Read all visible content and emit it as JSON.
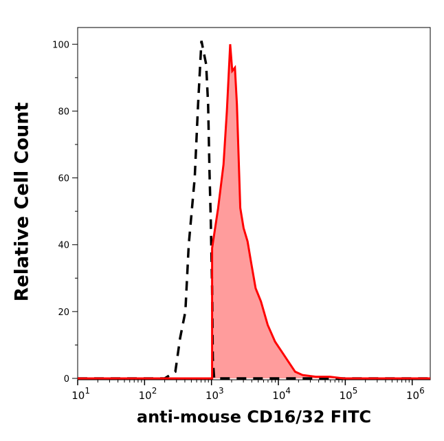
{
  "chart_data": {
    "type": "area",
    "xlabel": "anti-mouse CD16/32 FITC",
    "ylabel": "Relative Cell Count",
    "x_scale": "log",
    "xlim": [
      10,
      1862087
    ],
    "ylim": [
      0,
      105
    ],
    "x_ticks": [
      {
        "base": "10",
        "exp": "1",
        "v": 10
      },
      {
        "base": "10",
        "exp": "2",
        "v": 100
      },
      {
        "base": "10",
        "exp": "3",
        "v": 1000
      },
      {
        "base": "10",
        "exp": "4",
        "v": 10000
      },
      {
        "base": "10",
        "exp": "5",
        "v": 100000
      },
      {
        "base": "10",
        "exp": "6",
        "v": 1000000
      }
    ],
    "y_ticks": [
      "0",
      "20",
      "40",
      "60",
      "80",
      "100"
    ],
    "grid": false,
    "series": [
      {
        "style": "dashed",
        "color": "#000000",
        "fill": "none",
        "x": [
          10,
          200,
          288,
          339,
          407,
          457,
          562,
          631,
          708,
          832,
          891,
          933,
          977,
          1023,
          1047,
          1096,
          1862087
        ],
        "y": [
          0,
          0,
          2,
          12,
          20,
          40,
          60,
          82,
          101,
          94,
          82,
          62,
          47,
          27,
          6,
          0,
          0
        ]
      },
      {
        "style": "solid",
        "color": "#ff0000",
        "fill": "#ff9c9c",
        "x": [
          10,
          1023,
          1023,
          1259,
          1514,
          1698,
          1820,
          1905,
          2042,
          2239,
          2399,
          2692,
          3020,
          3467,
          3890,
          4571,
          5495,
          6918,
          8913,
          11220,
          14125,
          17783,
          22909,
          36308,
          58884,
          93325,
          1862087
        ],
        "y": [
          0,
          0,
          39,
          51,
          64,
          80,
          92,
          100,
          92,
          93,
          82,
          51,
          45,
          41,
          35,
          27,
          23,
          16,
          11,
          8,
          5,
          2,
          1,
          0.5,
          0.5,
          0,
          0
        ]
      }
    ]
  }
}
